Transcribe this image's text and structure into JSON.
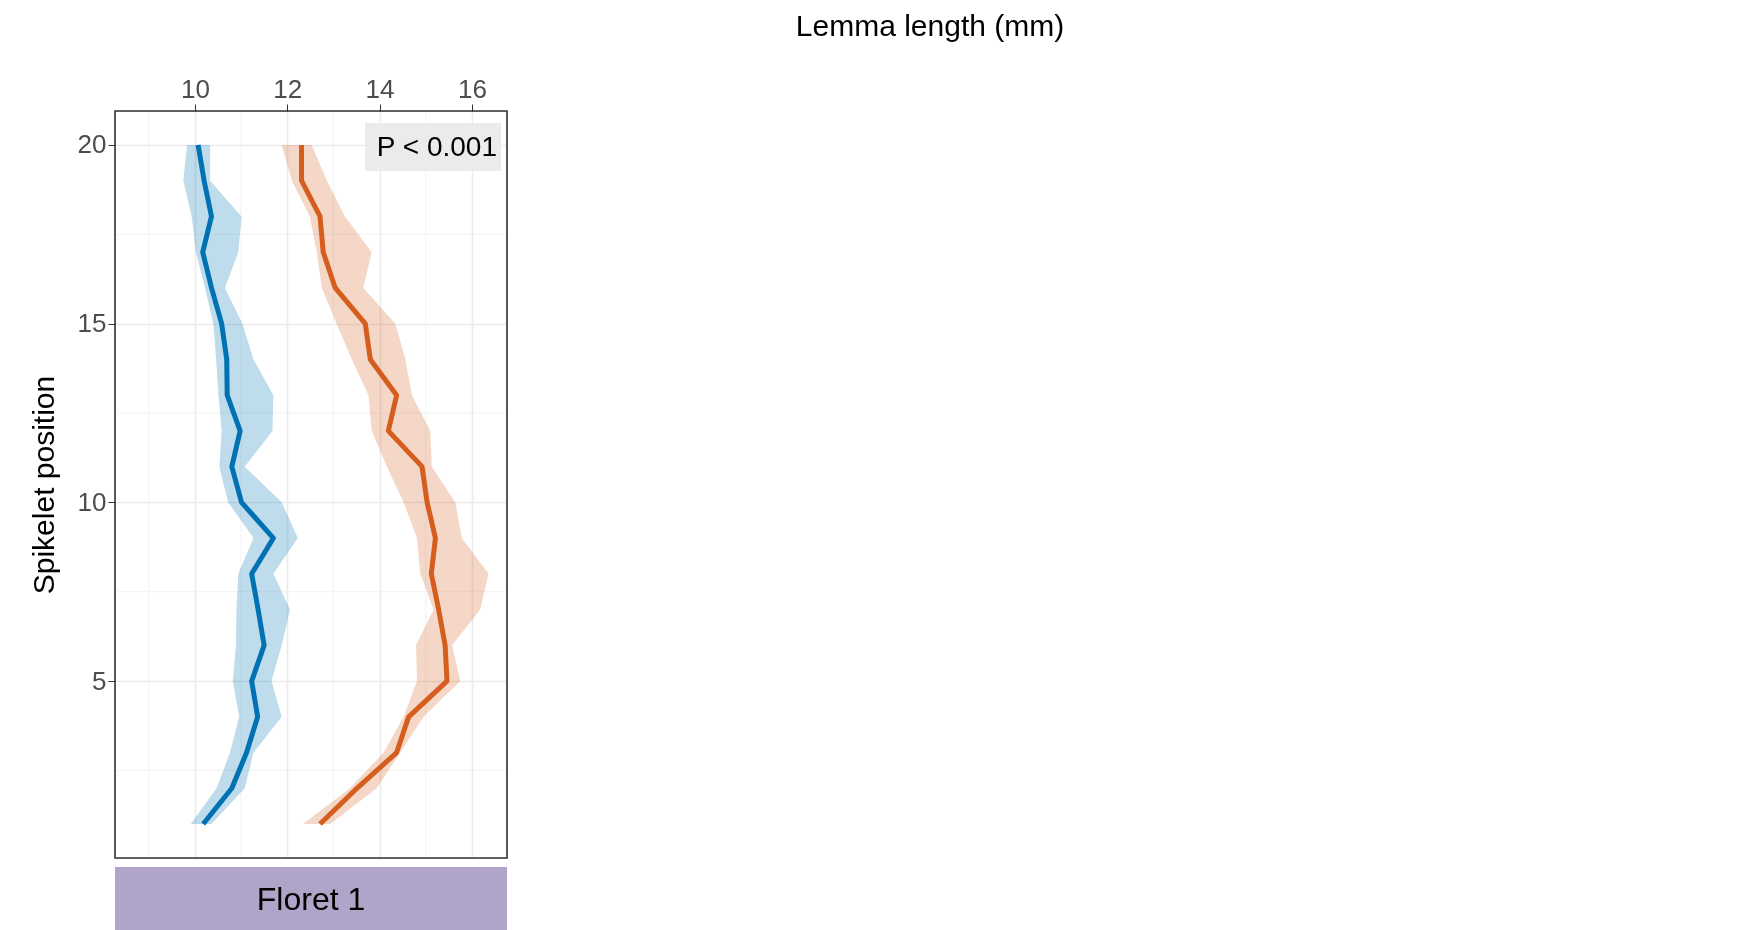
{
  "chart_data": {
    "type": "line",
    "orientation": "horizontal",
    "ylabel": "Spikelet position",
    "subtitle": "Floret 1",
    "annotations": [
      "Lemma length (mm)",
      "P < 0.001"
    ],
    "xlim": [
      8.27,
      16.76
    ],
    "xticks": [
      10,
      12,
      14,
      16
    ],
    "ylim": [
      0.05,
      20.95
    ],
    "yticks": [
      5,
      10,
      15,
      20
    ],
    "grid": true,
    "marker": "none",
    "line_style": "solid",
    "series": [
      {
        "color": "#0072b2",
        "x": [
          1,
          2,
          3,
          4,
          5,
          6,
          7,
          8,
          9,
          10,
          11,
          12,
          13,
          14,
          15,
          16,
          17,
          18,
          19,
          20
        ],
        "values": [
          10.18,
          10.8,
          11.12,
          11.36,
          11.23,
          11.5,
          11.37,
          11.23,
          11.7,
          11.01,
          10.8,
          10.98,
          10.7,
          10.69,
          10.58,
          10.36,
          10.17,
          10.36,
          10.2,
          10.07
        ],
        "lower": [
          9.91,
          10.47,
          10.76,
          10.96,
          10.82,
          10.89,
          10.9,
          10.94,
          11.27,
          10.72,
          10.53,
          10.58,
          10.51,
          10.46,
          10.4,
          10.22,
          10.02,
          9.93,
          9.75,
          9.83
        ],
        "upper": [
          10.36,
          11.08,
          11.27,
          11.88,
          11.66,
          11.88,
          12.06,
          11.7,
          12.23,
          11.88,
          11.08,
          11.68,
          11.7,
          11.27,
          11.03,
          10.65,
          10.94,
          11.01,
          10.33,
          10.33
        ]
      },
      {
        "color": "#d55e1e",
        "x": [
          1,
          2,
          3,
          4,
          5,
          6,
          7,
          8,
          9,
          10,
          11,
          12,
          13,
          14,
          15,
          16,
          17,
          18,
          19,
          20
        ],
        "values": [
          12.71,
          13.51,
          14.37,
          14.63,
          15.46,
          15.42,
          15.28,
          15.12,
          15.21,
          15.03,
          14.92,
          14.19,
          14.37,
          13.8,
          13.69,
          13.04,
          12.78,
          12.71,
          12.31,
          12.31
        ],
        "lower": [
          12.34,
          13.36,
          14.09,
          14.52,
          14.81,
          14.79,
          15.17,
          14.88,
          14.81,
          14.52,
          14.16,
          13.83,
          13.76,
          13.4,
          13.07,
          12.75,
          12.64,
          12.49,
          12.1,
          11.88
        ],
        "upper": [
          12.93,
          13.94,
          14.45,
          14.95,
          15.75,
          15.57,
          16.18,
          16.36,
          15.78,
          15.64,
          15.13,
          15.1,
          14.7,
          14.56,
          14.34,
          13.65,
          13.83,
          13.25,
          12.86,
          12.53
        ]
      }
    ]
  }
}
